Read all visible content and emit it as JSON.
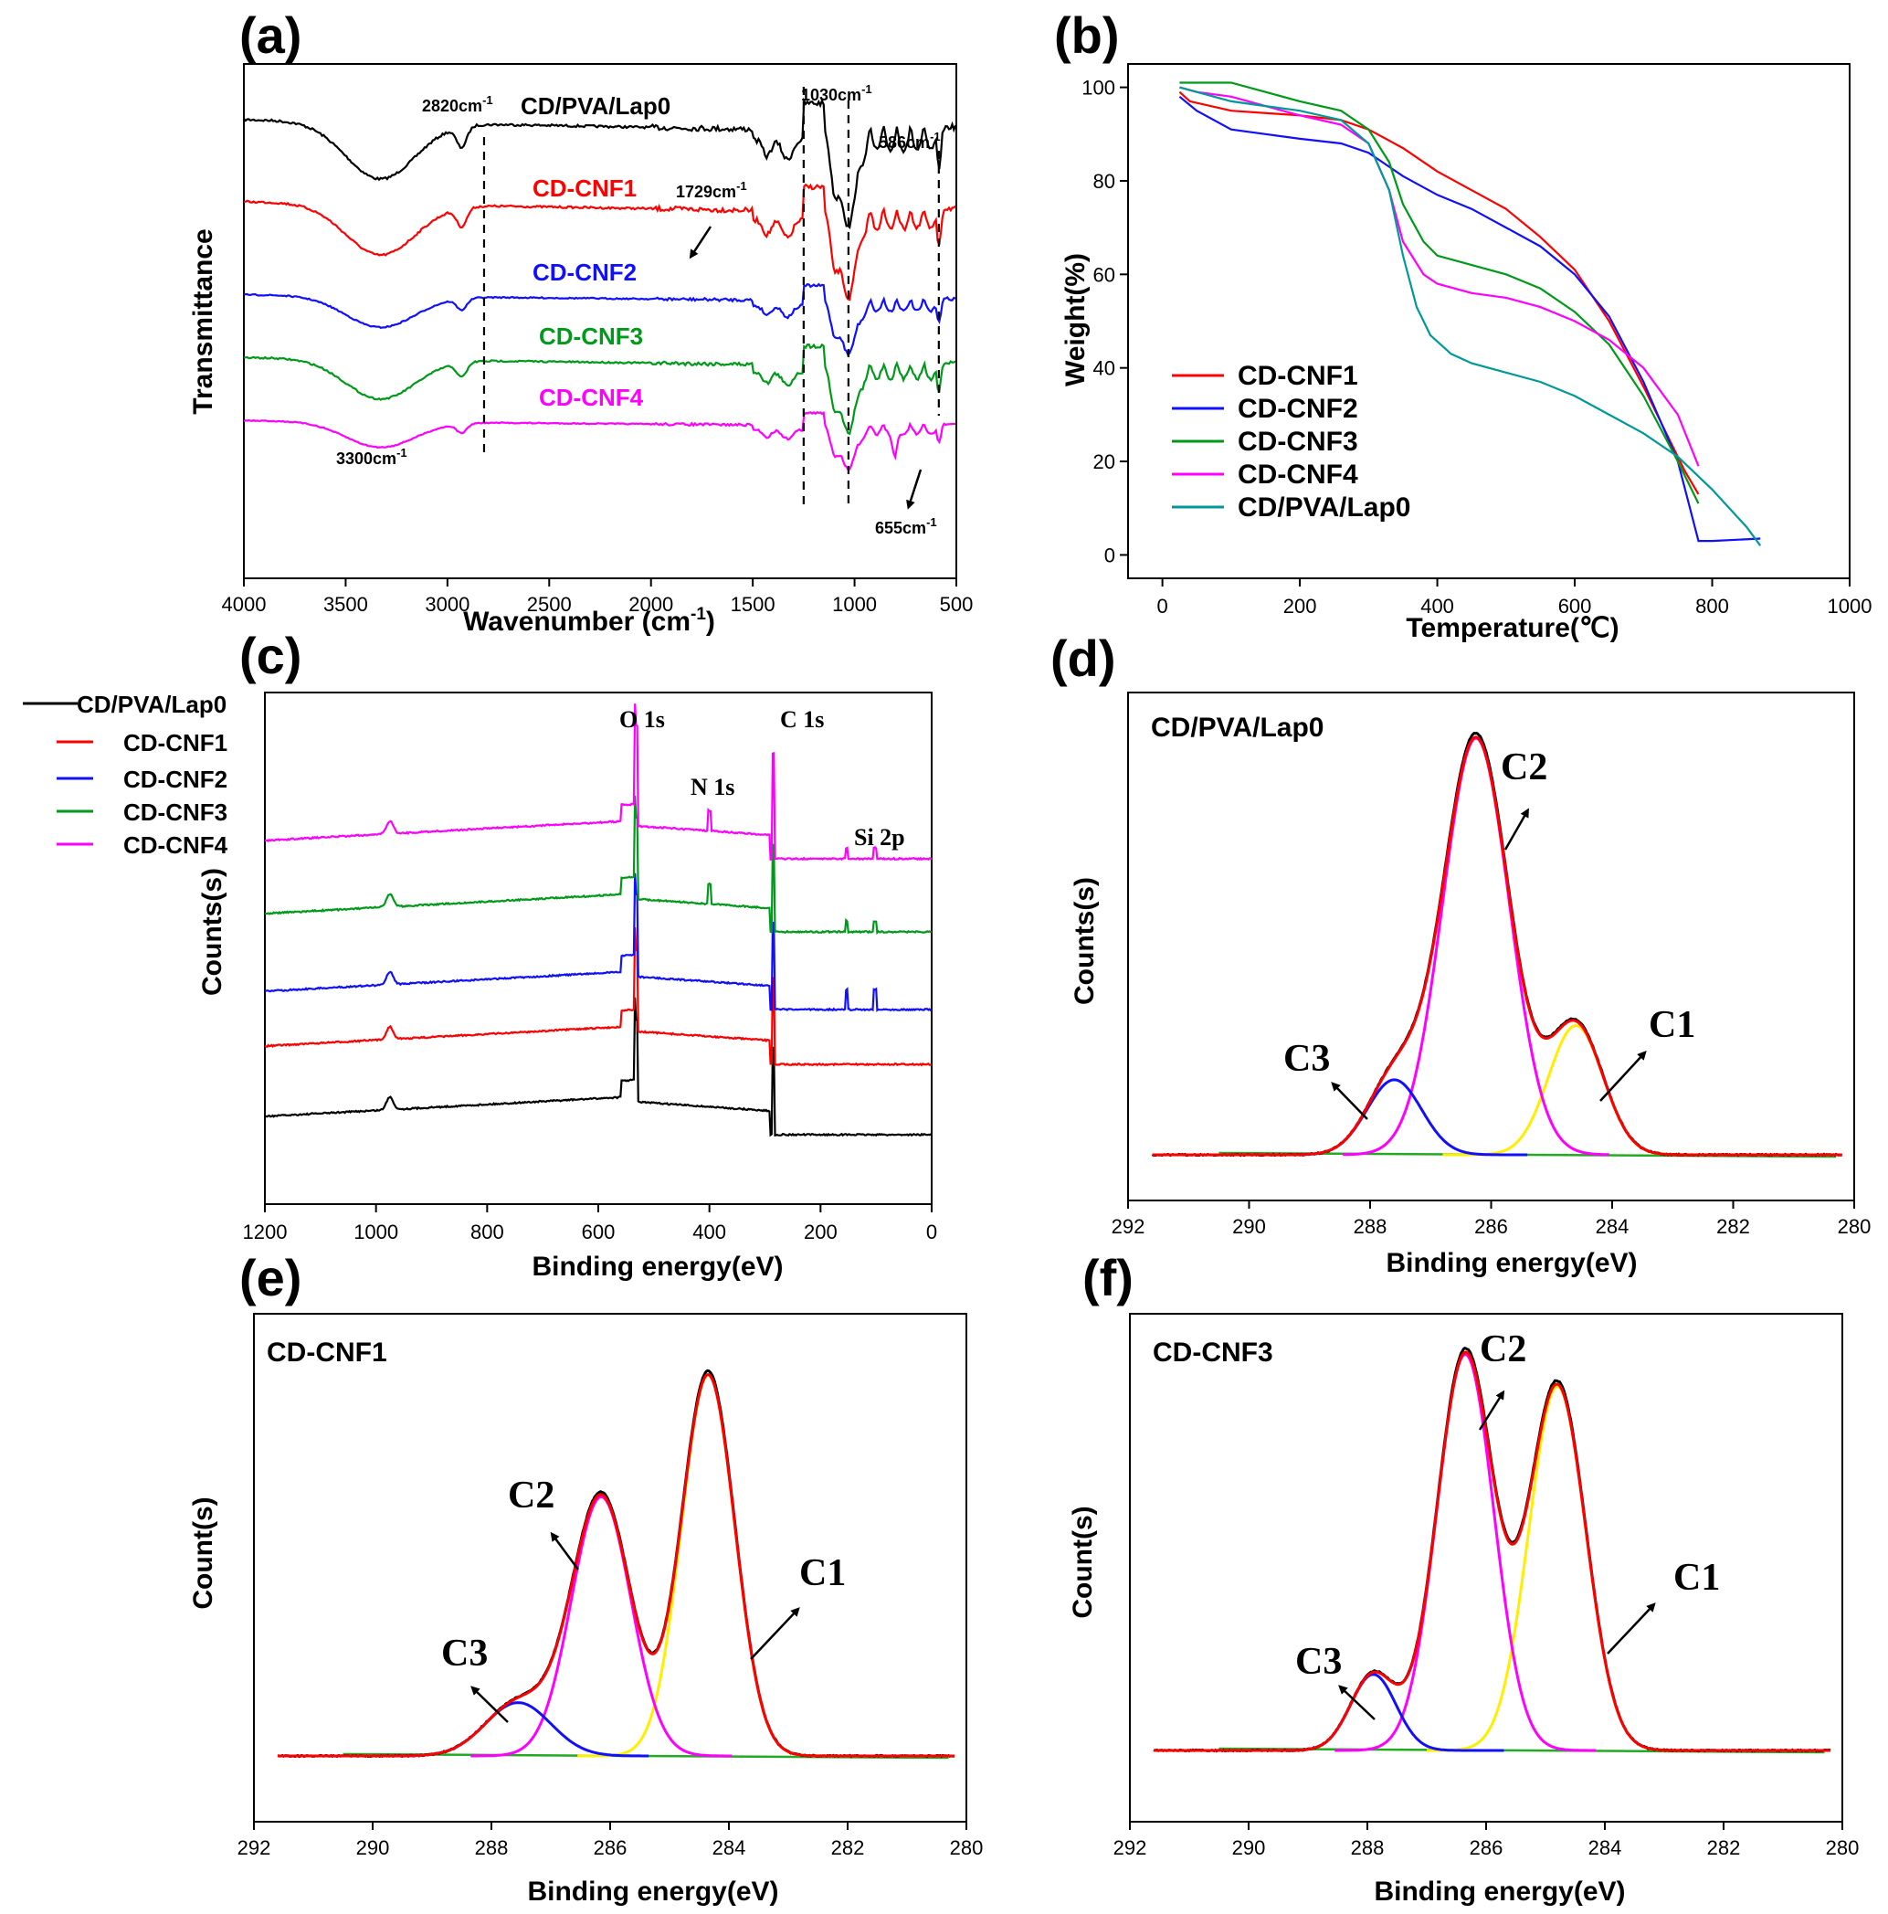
{
  "colors": {
    "black": "#000000",
    "red": "#ff0000",
    "blue": "#1010ff",
    "green": "#009a1a",
    "magenta": "#ff00ff",
    "teal": "#00999a",
    "yellow": "#ffee00",
    "fitgreen": "#22aa22"
  },
  "chart_data": [
    {
      "panel": "(a)",
      "type": "line",
      "xlabel": "Wavenumber (cm",
      "xlabel_sup": "-1",
      "xlabel_end": ")",
      "ylabel": "Transmittance",
      "xlim": [
        4000,
        500
      ],
      "xticks": [
        "4000",
        "3500",
        "3000",
        "2500",
        "2000",
        "1500",
        "1000",
        "500"
      ],
      "series": [
        {
          "name": "CD/PVA/Lap0",
          "color": "black"
        },
        {
          "name": "CD-CNF1",
          "color": "red"
        },
        {
          "name": "CD-CNF2",
          "color": "blue"
        },
        {
          "name": "CD-CNF3",
          "color": "green"
        },
        {
          "name": "CD-CNF4",
          "color": "magenta"
        }
      ],
      "annotations": [
        {
          "text": "2820cm",
          "sup": "-1",
          "x": 2820
        },
        {
          "text": "1030cm",
          "sup": "-1",
          "x": 1030
        },
        {
          "text": "586cm",
          "sup": "-1",
          "x": 586
        },
        {
          "text": "1729cm",
          "sup": "-1",
          "x": 1729
        },
        {
          "text": "3300cm",
          "sup": "-1",
          "x": 3300
        },
        {
          "text": "655cm",
          "sup": "-1",
          "x": 655
        }
      ]
    },
    {
      "panel": "(b)",
      "type": "line",
      "xlabel": "Temperature(℃)",
      "ylabel": "Weight(%)",
      "xlim": [
        -50,
        1000
      ],
      "ylim": [
        -5,
        105
      ],
      "xticks": [
        0,
        200,
        400,
        600,
        800,
        1000
      ],
      "yticks": [
        0,
        20,
        40,
        60,
        80,
        100
      ],
      "series": [
        {
          "name": "CD-CNF1",
          "color": "red",
          "x": [
            25,
            40,
            100,
            200,
            260,
            300,
            350,
            400,
            450,
            500,
            550,
            600,
            650,
            700,
            760,
            780
          ],
          "y": [
            99,
            97,
            95,
            94,
            93,
            91,
            87,
            82,
            78,
            74,
            68,
            61,
            50,
            36,
            18,
            13
          ]
        },
        {
          "name": "CD-CNF2",
          "color": "blue",
          "x": [
            25,
            50,
            100,
            150,
            200,
            260,
            300,
            350,
            400,
            450,
            500,
            550,
            600,
            650,
            700,
            750,
            780,
            800,
            870
          ],
          "y": [
            98,
            95,
            91,
            90,
            89,
            88,
            86,
            81,
            77,
            74,
            70,
            66,
            60,
            51,
            37,
            20,
            3,
            3,
            3.5
          ]
        },
        {
          "name": "CD-CNF3",
          "color": "green",
          "x": [
            25,
            50,
            100,
            150,
            200,
            260,
            300,
            330,
            350,
            380,
            400,
            450,
            500,
            550,
            600,
            650,
            700,
            750,
            780
          ],
          "y": [
            101,
            101,
            101,
            99,
            97,
            95,
            91,
            84,
            75,
            67,
            64,
            62,
            60,
            57,
            52,
            45,
            34,
            20,
            11
          ]
        },
        {
          "name": "CD-CNF4",
          "color": "magenta",
          "x": [
            25,
            50,
            100,
            150,
            200,
            260,
            300,
            330,
            350,
            380,
            400,
            450,
            500,
            550,
            600,
            650,
            700,
            750,
            780
          ],
          "y": [
            100,
            99,
            98,
            96,
            94,
            92,
            88,
            78,
            67,
            60,
            58,
            56,
            55,
            53,
            50,
            46,
            40,
            30,
            19
          ]
        },
        {
          "name": "CD/PVA/Lap0",
          "color": "teal",
          "x": [
            25,
            50,
            100,
            150,
            200,
            260,
            300,
            330,
            350,
            370,
            390,
            420,
            450,
            500,
            550,
            600,
            650,
            700,
            750,
            800,
            850,
            870
          ],
          "y": [
            100,
            99,
            97,
            96,
            95,
            93,
            88,
            78,
            64,
            53,
            47,
            43,
            41,
            39,
            37,
            34,
            30,
            26,
            21,
            14,
            6,
            2
          ]
        }
      ]
    },
    {
      "panel": "(c)",
      "type": "line",
      "xlabel": "Binding energy(eV)",
      "ylabel": "Counts(s)",
      "xlim": [
        1200,
        0
      ],
      "xticks": [
        1200,
        1000,
        800,
        600,
        400,
        200,
        0
      ],
      "series": [
        {
          "name": "CD/PVA/Lap0",
          "color": "black"
        },
        {
          "name": "CD-CNF1",
          "color": "red"
        },
        {
          "name": "CD-CNF2",
          "color": "blue"
        },
        {
          "name": "CD-CNF3",
          "color": "green"
        },
        {
          "name": "CD-CNF4",
          "color": "magenta"
        }
      ],
      "peaks": [
        "O 1s",
        "N 1s",
        "C 1s",
        "Si 2p"
      ]
    },
    {
      "panel": "(d)",
      "type": "line",
      "title": "CD/PVA/Lap0",
      "xlabel": "Binding energy(eV)",
      "ylabel": "Counts(s)",
      "xlim": [
        292,
        280
      ],
      "xticks": [
        292,
        290,
        288,
        286,
        284,
        282,
        280
      ],
      "components": [
        {
          "name": "C1",
          "center": 284.6,
          "amp": 0.31,
          "sigma": 0.45,
          "color": "yellow"
        },
        {
          "name": "C2",
          "center": 286.25,
          "amp": 1.0,
          "sigma": 0.55,
          "color": "magenta"
        },
        {
          "name": "C3",
          "center": 287.6,
          "amp": 0.18,
          "sigma": 0.45,
          "color": "blue"
        }
      ]
    },
    {
      "panel": "(e)",
      "type": "line",
      "title": "CD-CNF1",
      "xlabel": "Binding energy(eV)",
      "ylabel": "Count(s)",
      "xlim": [
        292,
        280
      ],
      "xticks": [
        292,
        290,
        288,
        286,
        284,
        282,
        280
      ],
      "components": [
        {
          "name": "C1",
          "center": 284.35,
          "amp": 1.0,
          "sigma": 0.45,
          "color": "yellow"
        },
        {
          "name": "C2",
          "center": 286.15,
          "amp": 0.68,
          "sigma": 0.5,
          "color": "magenta"
        },
        {
          "name": "C3",
          "center": 287.55,
          "amp": 0.14,
          "sigma": 0.55,
          "color": "blue"
        }
      ]
    },
    {
      "panel": "(f)",
      "type": "line",
      "title": "CD-CNF3",
      "xlabel": "Binding energy(eV)",
      "ylabel": "Count(s)",
      "xlim": [
        292,
        280
      ],
      "xticks": [
        292,
        290,
        288,
        286,
        284,
        282,
        280
      ],
      "components": [
        {
          "name": "C1",
          "center": 284.8,
          "amp": 0.91,
          "sigma": 0.48,
          "color": "yellow"
        },
        {
          "name": "C2",
          "center": 286.35,
          "amp": 0.99,
          "sigma": 0.48,
          "color": "magenta"
        },
        {
          "name": "C3",
          "center": 287.9,
          "amp": 0.19,
          "sigma": 0.38,
          "color": "blue"
        }
      ]
    }
  ]
}
